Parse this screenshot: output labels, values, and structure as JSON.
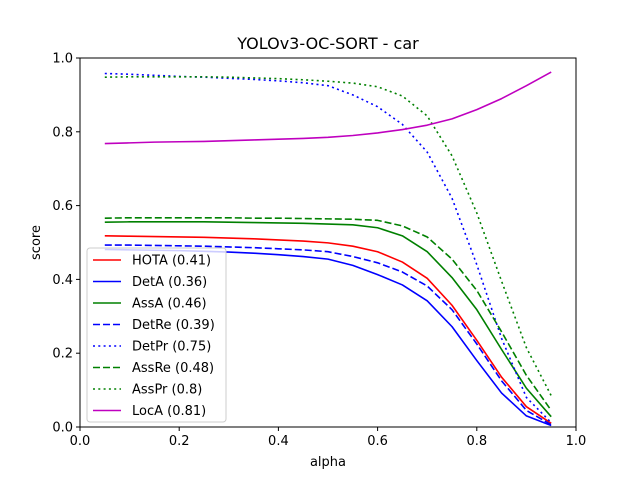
{
  "chart_data": {
    "type": "line",
    "title": "YOLOv3-OC-SORT - car",
    "xlabel": "alpha",
    "ylabel": "score",
    "xlim": [
      0.0,
      1.0
    ],
    "ylim": [
      0.0,
      1.0
    ],
    "xticks": [
      "0.0",
      "0.2",
      "0.4",
      "0.6",
      "0.8",
      "1.0"
    ],
    "yticks": [
      "0.0",
      "0.2",
      "0.4",
      "0.6",
      "0.8",
      "1.0"
    ],
    "grid": false,
    "legend_position": "lower-left",
    "x": [
      0.05,
      0.1,
      0.15,
      0.2,
      0.25,
      0.3,
      0.35,
      0.4,
      0.45,
      0.5,
      0.55,
      0.6,
      0.65,
      0.7,
      0.75,
      0.8,
      0.85,
      0.9,
      0.95
    ],
    "series": [
      {
        "name": "HOTA (0.41)",
        "color": "#ff0000",
        "dash": "solid",
        "values": [
          0.518,
          0.517,
          0.516,
          0.515,
          0.514,
          0.512,
          0.51,
          0.507,
          0.504,
          0.499,
          0.49,
          0.475,
          0.447,
          0.403,
          0.33,
          0.235,
          0.135,
          0.055,
          0.01
        ]
      },
      {
        "name": "DetA (0.36)",
        "color": "#0000ff",
        "dash": "solid",
        "values": [
          0.481,
          0.48,
          0.479,
          0.478,
          0.476,
          0.474,
          0.471,
          0.467,
          0.462,
          0.455,
          0.438,
          0.413,
          0.385,
          0.342,
          0.272,
          0.18,
          0.092,
          0.03,
          0.004
        ]
      },
      {
        "name": "AssA (0.46)",
        "color": "#008000",
        "dash": "solid",
        "values": [
          0.555,
          0.556,
          0.556,
          0.556,
          0.556,
          0.555,
          0.554,
          0.553,
          0.552,
          0.55,
          0.548,
          0.54,
          0.518,
          0.475,
          0.405,
          0.318,
          0.21,
          0.105,
          0.028
        ]
      },
      {
        "name": "DetRe (0.39)",
        "color": "#0000ff",
        "dash": "dashed",
        "values": [
          0.493,
          0.493,
          0.492,
          0.491,
          0.49,
          0.488,
          0.486,
          0.483,
          0.48,
          0.475,
          0.462,
          0.445,
          0.42,
          0.382,
          0.318,
          0.225,
          0.125,
          0.045,
          0.006
        ]
      },
      {
        "name": "DetPr (0.75)",
        "color": "#0000ff",
        "dash": "dotted",
        "values": [
          0.958,
          0.956,
          0.953,
          0.95,
          0.948,
          0.945,
          0.942,
          0.938,
          0.933,
          0.925,
          0.9,
          0.868,
          0.82,
          0.745,
          0.62,
          0.44,
          0.24,
          0.08,
          0.012
        ]
      },
      {
        "name": "AssRe (0.48)",
        "color": "#008000",
        "dash": "dashed",
        "values": [
          0.566,
          0.567,
          0.567,
          0.567,
          0.567,
          0.567,
          0.566,
          0.566,
          0.565,
          0.564,
          0.563,
          0.56,
          0.545,
          0.515,
          0.455,
          0.37,
          0.258,
          0.14,
          0.045
        ]
      },
      {
        "name": "AssPr (0.8)",
        "color": "#008000",
        "dash": "dotted",
        "values": [
          0.948,
          0.949,
          0.949,
          0.949,
          0.949,
          0.948,
          0.946,
          0.944,
          0.941,
          0.937,
          0.932,
          0.922,
          0.897,
          0.843,
          0.735,
          0.58,
          0.395,
          0.215,
          0.085
        ]
      },
      {
        "name": "LocA (0.81)",
        "color": "#bf00bf",
        "dash": "solid",
        "values": [
          0.768,
          0.77,
          0.772,
          0.773,
          0.774,
          0.776,
          0.778,
          0.78,
          0.782,
          0.785,
          0.79,
          0.797,
          0.806,
          0.818,
          0.835,
          0.86,
          0.89,
          0.925,
          0.962
        ]
      }
    ]
  }
}
